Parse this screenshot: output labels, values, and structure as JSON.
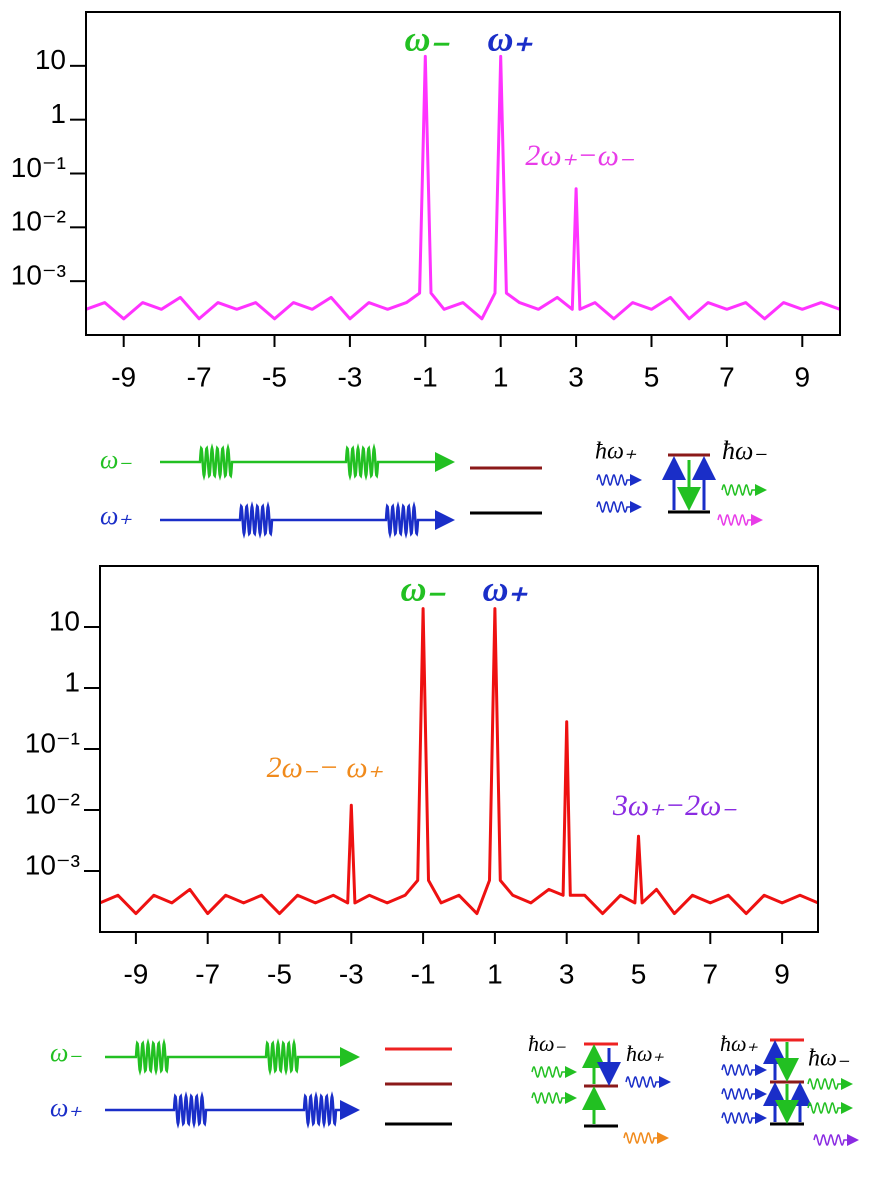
{
  "chart_data": [
    {
      "type": "line",
      "log_y": true,
      "color": "#ff33ff",
      "x": [
        -10,
        -9.5,
        -9,
        -8.5,
        -8,
        -7.5,
        -7,
        -6.5,
        -6,
        -5.5,
        -5,
        -4.5,
        -4,
        -3.5,
        -3,
        -2.5,
        -2,
        -1.5,
        -1.15,
        -1,
        -0.85,
        -0.5,
        0,
        0.5,
        0.85,
        1,
        1.15,
        1.5,
        2,
        2.5,
        2.9,
        3,
        3.1,
        3.5,
        4,
        4.5,
        5,
        5.5,
        6,
        6.5,
        7,
        7.5,
        8,
        8.5,
        9,
        9.5,
        10
      ],
      "values": [
        0.0003,
        0.0004,
        0.0002,
        0.0004,
        0.0003,
        0.0005,
        0.0002,
        0.0004,
        0.0003,
        0.0004,
        0.0002,
        0.0004,
        0.0003,
        0.0005,
        0.0002,
        0.0004,
        0.0003,
        0.0004,
        0.0006,
        15,
        0.0006,
        0.0003,
        0.0004,
        0.0002,
        0.0006,
        15,
        0.0006,
        0.0004,
        0.0003,
        0.0005,
        0.0003,
        0.052,
        0.0003,
        0.0004,
        0.0002,
        0.0004,
        0.0003,
        0.0005,
        0.0002,
        0.0004,
        0.0003,
        0.0004,
        0.0002,
        0.0004,
        0.0003,
        0.0004,
        0.0003
      ],
      "xlim": [
        -10,
        10
      ],
      "xticks": [
        -9,
        -7,
        -5,
        -3,
        -1,
        1,
        3,
        5,
        7,
        9
      ],
      "ylim": [
        0.0001,
        100
      ],
      "yticks": [
        10,
        1,
        {
          "value": 0.1,
          "label": "10⁻¹"
        },
        {
          "value": 0.01,
          "label": "10⁻²"
        },
        {
          "value": 0.001,
          "label": "10⁻³"
        }
      ],
      "annotations": [
        {
          "text": "ω₋",
          "color": "#22c022"
        },
        {
          "text": "ω₊",
          "color": "#1a2ec8"
        },
        {
          "text": "2ω₊−ω₋",
          "color": "#e83ce8"
        }
      ]
    },
    {
      "type": "line",
      "log_y": true,
      "color": "#ee1111",
      "x": [
        -10,
        -9.5,
        -9,
        -8.5,
        -8,
        -7.5,
        -7,
        -6.5,
        -6,
        -5.5,
        -5,
        -4.5,
        -4,
        -3.5,
        -3.1,
        -3,
        -2.9,
        -2.5,
        -2,
        -1.5,
        -1.15,
        -1,
        -0.85,
        -0.5,
        0,
        0.5,
        0.85,
        1,
        1.15,
        1.5,
        2,
        2.5,
        2.9,
        3,
        3.1,
        3.5,
        4,
        4.5,
        4.9,
        5,
        5.1,
        5.5,
        6,
        6.5,
        7,
        7.5,
        8,
        8.5,
        9,
        9.5,
        10
      ],
      "values": [
        0.0003,
        0.0004,
        0.0002,
        0.0004,
        0.0003,
        0.0005,
        0.0002,
        0.0004,
        0.0003,
        0.0004,
        0.0002,
        0.0004,
        0.0003,
        0.0004,
        0.0003,
        0.012,
        0.0003,
        0.0004,
        0.0003,
        0.0004,
        0.0007,
        20,
        0.0007,
        0.0003,
        0.0004,
        0.0002,
        0.0007,
        20,
        0.0007,
        0.0004,
        0.0003,
        0.0005,
        0.0004,
        0.28,
        0.0004,
        0.0004,
        0.0002,
        0.0004,
        0.0003,
        0.0037,
        0.0003,
        0.0005,
        0.0002,
        0.0004,
        0.0003,
        0.0004,
        0.0002,
        0.0004,
        0.0003,
        0.0004,
        0.0003
      ],
      "xlim": [
        -10,
        10
      ],
      "xticks": [
        -9,
        -7,
        -5,
        -3,
        -1,
        1,
        3,
        5,
        7,
        9
      ],
      "ylim": [
        0.0001,
        100
      ],
      "yticks": [
        10,
        1,
        {
          "value": 0.1,
          "label": "10⁻¹"
        },
        {
          "value": 0.01,
          "label": "10⁻²"
        },
        {
          "value": 0.001,
          "label": "10⁻³"
        }
      ],
      "annotations": [
        {
          "text": "ω₋",
          "color": "#22c022"
        },
        {
          "text": "ω₊",
          "color": "#1a2ec8"
        },
        {
          "text": "2ω₋− ω₊",
          "color": "#f08a1c"
        },
        {
          "text": "3ω₊−2ω₋",
          "color": "#8a2be2"
        }
      ]
    }
  ],
  "diagrams": [
    {
      "pulse_labels": [
        "ω₋",
        "ω₊"
      ],
      "photon_labels": [
        "ħω₊",
        "ħω₋"
      ]
    },
    {
      "pulse_labels": [
        "ω₋",
        "ω₊"
      ],
      "photon_labels": [
        "ħω₋",
        "ħω₊",
        "ħω₊",
        "ħω₋"
      ]
    }
  ]
}
